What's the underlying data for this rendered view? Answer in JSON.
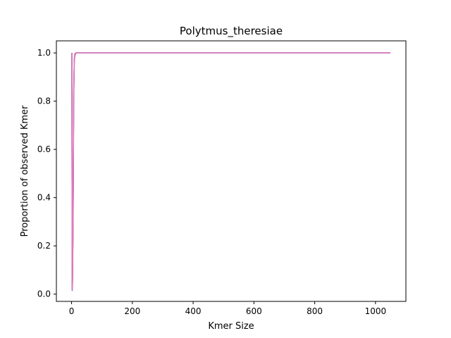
{
  "chart_data": {
    "type": "line",
    "title": "Polytmus_theresiae",
    "xlabel": "Kmer Size",
    "ylabel": "Proportion of observed Kmer",
    "xlim": [
      -50,
      1100
    ],
    "ylim": [
      -0.03,
      1.05
    ],
    "xticks": [
      0,
      200,
      400,
      600,
      800,
      1000
    ],
    "yticks": [
      0.0,
      0.2,
      0.4,
      0.6,
      0.8,
      1.0
    ],
    "xtick_labels": [
      "0",
      "200",
      "400",
      "600",
      "800",
      "1000"
    ],
    "ytick_labels": [
      "0.0",
      "0.2",
      "0.4",
      "0.6",
      "0.8",
      "1.0"
    ],
    "grid": false,
    "series": [
      {
        "color": "#8c564b",
        "x": [
          1,
          2,
          3,
          5,
          7,
          9,
          11,
          15,
          21,
          31,
          51,
          101,
          1049
        ],
        "y": [
          1.0,
          0.02,
          0.05,
          0.3,
          0.8,
          0.97,
          0.99,
          1.0,
          1.0,
          1.0,
          1.0,
          1.0,
          1.0
        ]
      },
      {
        "color": "#9467bd",
        "x": [
          1,
          2,
          3,
          5,
          7,
          9,
          11,
          15,
          21,
          31,
          51,
          101,
          1049
        ],
        "y": [
          1.0,
          0.015,
          0.04,
          0.32,
          0.82,
          0.975,
          0.995,
          1.0,
          1.0,
          1.0,
          1.0,
          1.0,
          1.0
        ]
      },
      {
        "color": "#7f7f7f",
        "x": [
          1,
          2,
          3,
          5,
          7,
          9,
          11,
          15,
          21,
          31,
          51,
          101,
          1049
        ],
        "y": [
          1.0,
          0.02,
          0.06,
          0.35,
          0.85,
          0.98,
          0.997,
          1.0,
          1.0,
          1.0,
          1.0,
          1.0,
          1.0
        ]
      },
      {
        "color": "#e377c2",
        "x": [
          1,
          2,
          3,
          5,
          7,
          9,
          11,
          15,
          21,
          31,
          51,
          101,
          1049
        ],
        "y": [
          1.0,
          0.02,
          0.05,
          0.33,
          0.83,
          0.978,
          0.996,
          1.0,
          1.0,
          1.0,
          1.0,
          1.0,
          1.0
        ]
      }
    ]
  }
}
